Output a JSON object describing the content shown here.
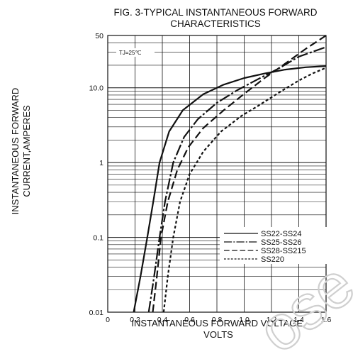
{
  "chart_data": {
    "type": "line",
    "title": "FIG. 3-TYPICAL INSTANTANEOUS FORWARD",
    "subtitle": "CHARACTERISTICS",
    "xlabel_line1": "INSTANTANEOUS FORWARD VOLTAGE,",
    "xlabel_line2": "VOLTS",
    "ylabel_line1": "INSTANTANEOUS FORWARD",
    "ylabel_line2": "CURRENT,AMPERES",
    "annotation": "TJ=25℃",
    "x_scale": "linear",
    "y_scale": "log",
    "xlim": [
      0,
      1.6
    ],
    "ylim": [
      0.01,
      50
    ],
    "x_tick_labels": [
      "0",
      "0.2",
      "0.4",
      "0.6",
      "0.8",
      "1.0",
      "1.2",
      "1.4",
      "1.6"
    ],
    "y_tick_labels": [
      "0.01",
      "0.1",
      "1",
      "10.0",
      "50"
    ],
    "grid": true,
    "legend_position": "bottom-right",
    "series": [
      {
        "name": "SS22-SS24",
        "dash": "solid",
        "points": [
          [
            0.19,
            0.01
          ],
          [
            0.24,
            0.03
          ],
          [
            0.29,
            0.1
          ],
          [
            0.34,
            0.35
          ],
          [
            0.38,
            1.0
          ],
          [
            0.45,
            2.6
          ],
          [
            0.55,
            5.0
          ],
          [
            0.7,
            8.2
          ],
          [
            0.85,
            11.0
          ],
          [
            1.0,
            13.5
          ],
          [
            1.15,
            15.5
          ],
          [
            1.3,
            17.5
          ],
          [
            1.45,
            18.8
          ],
          [
            1.6,
            19.5
          ]
        ]
      },
      {
        "name": "SS25-SS26",
        "dash": "dash-dot",
        "points": [
          [
            0.3,
            0.01
          ],
          [
            0.34,
            0.03
          ],
          [
            0.38,
            0.1
          ],
          [
            0.42,
            0.3
          ],
          [
            0.48,
            1.0
          ],
          [
            0.56,
            2.2
          ],
          [
            0.66,
            3.8
          ],
          [
            0.8,
            6.3
          ],
          [
            0.95,
            9.3
          ],
          [
            1.1,
            13.0
          ],
          [
            1.25,
            18.0
          ],
          [
            1.4,
            26.0
          ],
          [
            1.6,
            35.0
          ]
        ]
      },
      {
        "name": "SS28-SS215",
        "dash": "dashed",
        "points": [
          [
            0.33,
            0.01
          ],
          [
            0.36,
            0.03
          ],
          [
            0.39,
            0.1
          ],
          [
            0.44,
            0.3
          ],
          [
            0.51,
            0.8
          ],
          [
            0.59,
            1.6
          ],
          [
            0.7,
            2.9
          ],
          [
            0.85,
            5.0
          ],
          [
            1.0,
            8.3
          ],
          [
            1.15,
            13.5
          ],
          [
            1.3,
            21.0
          ],
          [
            1.45,
            33.0
          ],
          [
            1.6,
            50.0
          ]
        ]
      },
      {
        "name": "SS220",
        "dash": "dotted",
        "points": [
          [
            0.41,
            0.01
          ],
          [
            0.44,
            0.03
          ],
          [
            0.48,
            0.1
          ],
          [
            0.53,
            0.3
          ],
          [
            0.6,
            0.7
          ],
          [
            0.7,
            1.4
          ],
          [
            0.83,
            2.6
          ],
          [
            0.98,
            4.2
          ],
          [
            1.1,
            5.7
          ],
          [
            1.25,
            8.5
          ],
          [
            1.4,
            12.5
          ],
          [
            1.5,
            15.5
          ],
          [
            1.6,
            18.5
          ]
        ]
      }
    ],
    "colors": {
      "ink": "#111111",
      "grid": "#111111",
      "watermark": "#cfcfcf"
    }
  },
  "watermark": "ose"
}
